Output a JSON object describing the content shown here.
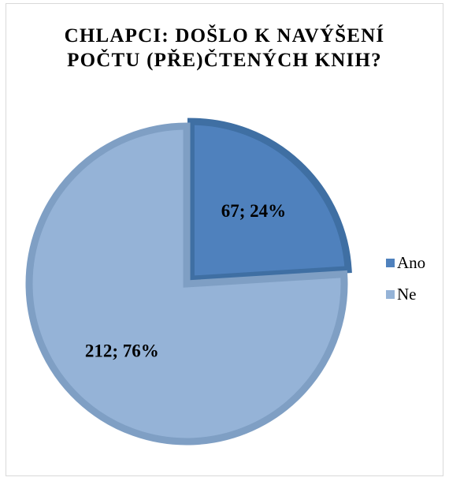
{
  "chart_data": {
    "type": "pie",
    "title_lines": [
      "CHLAPCI: DOŠLO K NAVÝŠENÍ",
      "POČTU (PŘE)ČTENÝCH KNIH?"
    ],
    "categories": [
      "Ano",
      "Ne"
    ],
    "values": [
      67,
      212
    ],
    "percentages": [
      24,
      76
    ],
    "data_labels": [
      "67; 24%",
      "212; 76%"
    ],
    "exploded": "Ano",
    "colors": [
      "#4f81bd",
      "#95b3d7"
    ],
    "edge_colors": [
      "#3f6fa3",
      "#7f9fc4"
    ],
    "legend": {
      "placement": "right",
      "items": [
        {
          "label": "Ano",
          "color": "#4f81bd"
        },
        {
          "label": "Ne",
          "color": "#95b3d7"
        }
      ]
    }
  }
}
